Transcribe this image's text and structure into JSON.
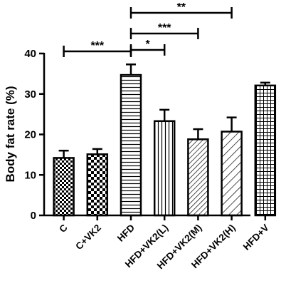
{
  "chart_data": {
    "type": "bar",
    "ylabel": "Body fat rate (%)",
    "xlabel": "",
    "ylim": [
      0,
      40
    ],
    "yticks": [
      0,
      10,
      20,
      30,
      40
    ],
    "grid": false,
    "categories": [
      "C",
      "C+VK2",
      "HFD",
      "HFD+VK2(L)",
      "HFD+VK2(M)",
      "HFD+VK2(H)",
      "HFD+V"
    ],
    "values": [
      14.2,
      15.1,
      34.7,
      23.3,
      18.8,
      20.7,
      32.1
    ],
    "errors": [
      1.8,
      1.3,
      2.6,
      2.8,
      2.5,
      3.5,
      0.7
    ],
    "patterns": [
      "checker-fine",
      "checker-coarse",
      "horizontal-lines",
      "vertical-lines",
      "diagonal-lines",
      "diagonal-lines-wide",
      "grid"
    ],
    "significance": [
      {
        "from": "C",
        "to": "HFD",
        "label": "***"
      },
      {
        "from": "HFD",
        "to": "HFD+VK2(L)",
        "label": "*"
      },
      {
        "from": "HFD",
        "to": "HFD+VK2(M)",
        "label": "***"
      },
      {
        "from": "HFD",
        "to": "HFD+VK2(H)",
        "label": "**"
      }
    ]
  }
}
